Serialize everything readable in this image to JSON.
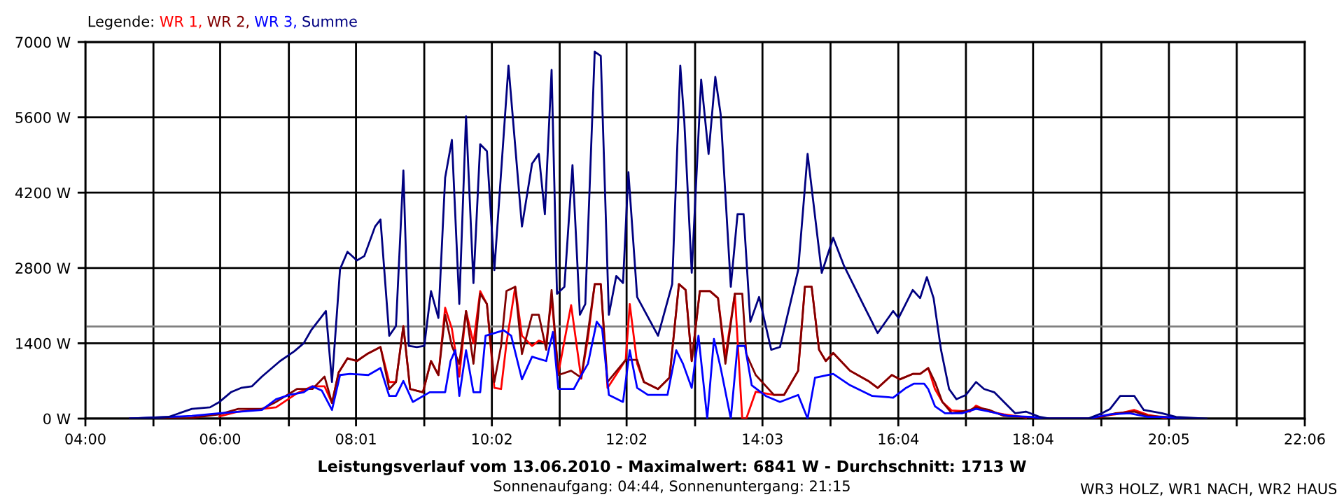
{
  "chart_data": {
    "type": "line",
    "title": "Leistungsverlauf vom 13.06.2010 - Maximalwert: 6841 W - Durchschnitt: 1713 W",
    "subtitle": "Sonnenaufgang: 04:44, Sonnenuntergang: 21:15",
    "legend_title": "Legende:",
    "grid": true,
    "marker": "none",
    "line_style": "solid",
    "annotations": [
      "WR3 HOLZ, WR1 NACH, WR2 HAUS"
    ],
    "xlim": [
      4,
      22.1
    ],
    "xticks": [
      {
        "value": 4,
        "label": "04:00"
      },
      {
        "value": 5.01,
        "label": null
      },
      {
        "value": 6.0,
        "label": "06:00"
      },
      {
        "value": 7.02,
        "label": null
      },
      {
        "value": 8.0167,
        "label": "08:01"
      },
      {
        "value": 9.03,
        "label": null
      },
      {
        "value": 10.0333,
        "label": "10:02"
      },
      {
        "value": 11.04,
        "label": null
      },
      {
        "value": 12.0333,
        "label": "12:02"
      },
      {
        "value": 13.05,
        "label": null
      },
      {
        "value": 14.05,
        "label": "14:03"
      },
      {
        "value": 15.06,
        "label": null
      },
      {
        "value": 16.0667,
        "label": "16:04"
      },
      {
        "value": 17.07,
        "label": null
      },
      {
        "value": 18.0667,
        "label": "18:04"
      },
      {
        "value": 19.08,
        "label": null
      },
      {
        "value": 20.0833,
        "label": "20:05"
      },
      {
        "value": 21.09,
        "label": null
      },
      {
        "value": 22.1,
        "label": "22:06"
      }
    ],
    "ylim": [
      0,
      7000
    ],
    "yticks": [
      {
        "value": 0,
        "label": "0 W"
      },
      {
        "value": 1400,
        "label": "1400 W"
      },
      {
        "value": 2800,
        "label": "2800 W"
      },
      {
        "value": 4200,
        "label": "4200 W"
      },
      {
        "value": 5600,
        "label": "5600 W"
      },
      {
        "value": 7000,
        "label": "7000 W"
      }
    ],
    "ref_lines": [
      {
        "axis": "y",
        "value": 1713,
        "color": "#808080"
      }
    ],
    "series": [
      {
        "name": "WR 1,",
        "color": "#ff0000",
        "x": [
          5.99,
          6.27,
          6.62,
          6.83,
          7.14,
          7.37,
          7.55,
          7.66,
          7.76,
          7.89,
          8.03,
          8.18,
          8.38,
          8.51,
          8.61,
          8.72,
          8.82,
          9.01,
          9.13,
          9.24,
          9.34,
          9.44,
          9.55,
          9.65,
          9.76,
          9.86,
          9.96,
          10.07,
          10.17,
          10.25,
          10.38,
          10.48,
          10.63,
          10.73,
          10.84,
          10.92,
          11.02,
          11.21,
          11.36,
          11.46,
          11.56,
          11.65,
          11.75,
          12.02,
          12.08,
          12.19,
          12.29,
          12.5,
          12.67,
          12.81,
          12.91,
          13.0,
          13.12,
          13.27,
          13.39,
          13.5,
          13.64,
          13.75,
          13.81,
          13.95,
          14.22,
          14.37,
          14.58,
          14.68,
          14.78,
          14.89,
          14.99,
          15.1,
          15.35,
          15.62,
          15.76,
          15.97,
          16.09,
          16.28,
          16.39,
          16.51,
          16.61,
          16.72,
          16.86,
          17.13,
          17.22,
          17.42,
          17.63,
          17.96,
          18.26,
          18.88,
          19.09,
          19.29,
          19.57,
          19.77,
          20.04
        ],
        "values": [
          40,
          130,
          180,
          210,
          470,
          600,
          600,
          290,
          860,
          1120,
          1070,
          1200,
          1330,
          680,
          680,
          1720,
          550,
          490,
          1070,
          810,
          2060,
          1670,
          780,
          2000,
          1400,
          2370,
          2130,
          570,
          550,
          1400,
          2450,
          1540,
          1350,
          1450,
          1400,
          2240,
          840,
          2110,
          740,
          1500,
          2500,
          2500,
          570,
          1090,
          2130,
          1020,
          680,
          550,
          760,
          2500,
          2390,
          1070,
          2370,
          2370,
          2240,
          1150,
          2320,
          0,
          0,
          500,
          440,
          440,
          890,
          2450,
          2450,
          1280,
          1070,
          1220,
          890,
          700,
          570,
          810,
          730,
          830,
          830,
          940,
          550,
          310,
          150,
          130,
          240,
          130,
          80,
          20,
          null,
          null,
          50,
          80,
          160,
          70,
          10
        ]
      },
      {
        "name": "WR 2,",
        "color": "#800000",
        "x": [
          4.66,
          5.5,
          5.99,
          6.27,
          6.62,
          6.83,
          7.14,
          7.37,
          7.55,
          7.66,
          7.76,
          7.89,
          8.03,
          8.18,
          8.38,
          8.51,
          8.61,
          8.72,
          8.82,
          9.01,
          9.13,
          9.24,
          9.34,
          9.44,
          9.55,
          9.65,
          9.76,
          9.86,
          9.96,
          10.07,
          10.17,
          10.25,
          10.38,
          10.48,
          10.63,
          10.73,
          10.84,
          10.92,
          11.02,
          11.21,
          11.36,
          11.46,
          11.56,
          11.65,
          11.75,
          12.02,
          12.08,
          12.19,
          12.29,
          12.5,
          12.67,
          12.81,
          12.91,
          13.0,
          13.12,
          13.27,
          13.39,
          13.5,
          13.64,
          13.75,
          13.81,
          13.95,
          14.22,
          14.37,
          14.58,
          14.68,
          14.78,
          14.89,
          14.99,
          15.1,
          15.35,
          15.62,
          15.76,
          15.97,
          16.09,
          16.28,
          16.39,
          16.51,
          16.61,
          16.72,
          16.86,
          17.13,
          17.22,
          17.42,
          17.63,
          17.96,
          18.26,
          18.88,
          19.09,
          19.29,
          19.57,
          19.77,
          20.04,
          20.46
        ],
        "values": [
          0,
          0,
          80,
          180,
          180,
          310,
          550,
          550,
          780,
          290,
          860,
          1120,
          1070,
          1200,
          1330,
          550,
          680,
          1720,
          550,
          490,
          1070,
          810,
          1930,
          1350,
          1020,
          2000,
          1020,
          2320,
          2130,
          680,
          1350,
          2370,
          2450,
          1200,
          1930,
          1930,
          1280,
          2390,
          810,
          890,
          760,
          1610,
          2500,
          2500,
          680,
          1090,
          1090,
          1090,
          680,
          550,
          760,
          2500,
          2390,
          1070,
          2370,
          2370,
          2240,
          1020,
          2320,
          2320,
          1200,
          810,
          440,
          440,
          890,
          2450,
          2450,
          1280,
          1070,
          1220,
          890,
          700,
          570,
          810,
          730,
          830,
          830,
          940,
          680,
          310,
          100,
          160,
          210,
          160,
          50,
          30,
          0,
          0,
          30,
          100,
          130,
          50,
          30,
          0
        ]
      },
      {
        "name": "WR 3,",
        "color": "#0000ff",
        "x": [
          4.66,
          5.58,
          5.99,
          6.62,
          6.83,
          7.03,
          7.24,
          7.37,
          7.51,
          7.66,
          7.78,
          7.93,
          8.2,
          8.38,
          8.51,
          8.61,
          8.72,
          8.86,
          9.11,
          9.34,
          9.42,
          9.49,
          9.55,
          9.65,
          9.76,
          9.86,
          9.94,
          10.21,
          10.32,
          10.48,
          10.63,
          10.84,
          10.94,
          11.02,
          11.25,
          11.34,
          11.46,
          11.59,
          11.67,
          11.77,
          11.98,
          12.08,
          12.19,
          12.35,
          12.64,
          12.77,
          12.87,
          13.0,
          13.1,
          13.23,
          13.33,
          13.43,
          13.58,
          13.68,
          13.79,
          13.89,
          14.1,
          14.31,
          14.58,
          14.72,
          14.83,
          15.1,
          15.35,
          15.68,
          15.99,
          16.18,
          16.3,
          16.45,
          16.51,
          16.61,
          16.76,
          17.01,
          17.22,
          17.42,
          17.69,
          18.05,
          18.26,
          18.88,
          19.21,
          19.5,
          19.77,
          19.98,
          20.46
        ],
        "values": [
          0,
          50,
          100,
          160,
          360,
          440,
          490,
          600,
          520,
          160,
          810,
          830,
          810,
          940,
          420,
          420,
          700,
          310,
          490,
          490,
          1070,
          1270,
          420,
          1270,
          490,
          490,
          1540,
          1640,
          1540,
          730,
          1150,
          1070,
          1610,
          550,
          550,
          760,
          1020,
          1800,
          1670,
          440,
          310,
          1270,
          570,
          440,
          440,
          1270,
          1020,
          570,
          1540,
          0,
          1480,
          940,
          0,
          1350,
          1350,
          620,
          420,
          310,
          440,
          0,
          760,
          830,
          620,
          420,
          390,
          570,
          650,
          650,
          550,
          230,
          100,
          100,
          180,
          130,
          50,
          30,
          0,
          0,
          80,
          100,
          30,
          30,
          0
        ]
      },
      {
        "name": "Summe",
        "color": "#000080",
        "x": [
          4.66,
          5.23,
          5.58,
          5.85,
          5.99,
          6.16,
          6.31,
          6.47,
          6.62,
          6.89,
          7.1,
          7.24,
          7.35,
          7.57,
          7.66,
          7.78,
          7.89,
          8.03,
          8.14,
          8.3,
          8.38,
          8.51,
          8.61,
          8.72,
          8.8,
          8.92,
          9.03,
          9.13,
          9.24,
          9.34,
          9.44,
          9.55,
          9.65,
          9.76,
          9.86,
          9.96,
          10.07,
          10.28,
          10.48,
          10.63,
          10.73,
          10.82,
          10.92,
          11.0,
          11.11,
          11.23,
          11.34,
          11.42,
          11.56,
          11.65,
          11.77,
          11.88,
          11.98,
          12.06,
          12.19,
          12.5,
          12.71,
          12.83,
          12.89,
          13.0,
          13.14,
          13.25,
          13.35,
          13.43,
          13.58,
          13.68,
          13.77,
          13.87,
          14.0,
          14.18,
          14.31,
          14.58,
          14.72,
          14.93,
          15.1,
          15.26,
          15.55,
          15.76,
          15.99,
          16.07,
          16.28,
          16.39,
          16.49,
          16.59,
          16.7,
          16.82,
          16.93,
          17.07,
          17.22,
          17.34,
          17.49,
          17.65,
          17.8,
          17.96,
          18.17,
          18.32,
          18.88,
          19.09,
          19.21,
          19.36,
          19.57,
          19.71,
          19.98,
          20.19,
          20.64
        ],
        "values": [
          0,
          30,
          180,
          210,
          310,
          490,
          570,
          600,
          780,
          1070,
          1250,
          1400,
          1640,
          2000,
          680,
          2780,
          3100,
          2940,
          3020,
          3570,
          3700,
          1540,
          1720,
          4610,
          1350,
          1330,
          1350,
          2370,
          1870,
          4480,
          5180,
          2130,
          5620,
          2520,
          5100,
          4970,
          2760,
          6560,
          3570,
          4740,
          4920,
          3800,
          6480,
          2320,
          2450,
          4710,
          1930,
          2130,
          6820,
          6740,
          1930,
          2650,
          2520,
          4580,
          2260,
          1540,
          2500,
          6560,
          5520,
          2710,
          6300,
          4920,
          6350,
          5650,
          2450,
          3800,
          3800,
          1800,
          2260,
          1280,
          1330,
          2760,
          4920,
          2710,
          3360,
          2840,
          2110,
          1590,
          2000,
          1870,
          2390,
          2240,
          2630,
          2240,
          1280,
          550,
          360,
          440,
          680,
          550,
          490,
          290,
          100,
          130,
          30,
          0,
          0,
          100,
          180,
          420,
          420,
          160,
          100,
          30,
          0
        ]
      }
    ]
  }
}
